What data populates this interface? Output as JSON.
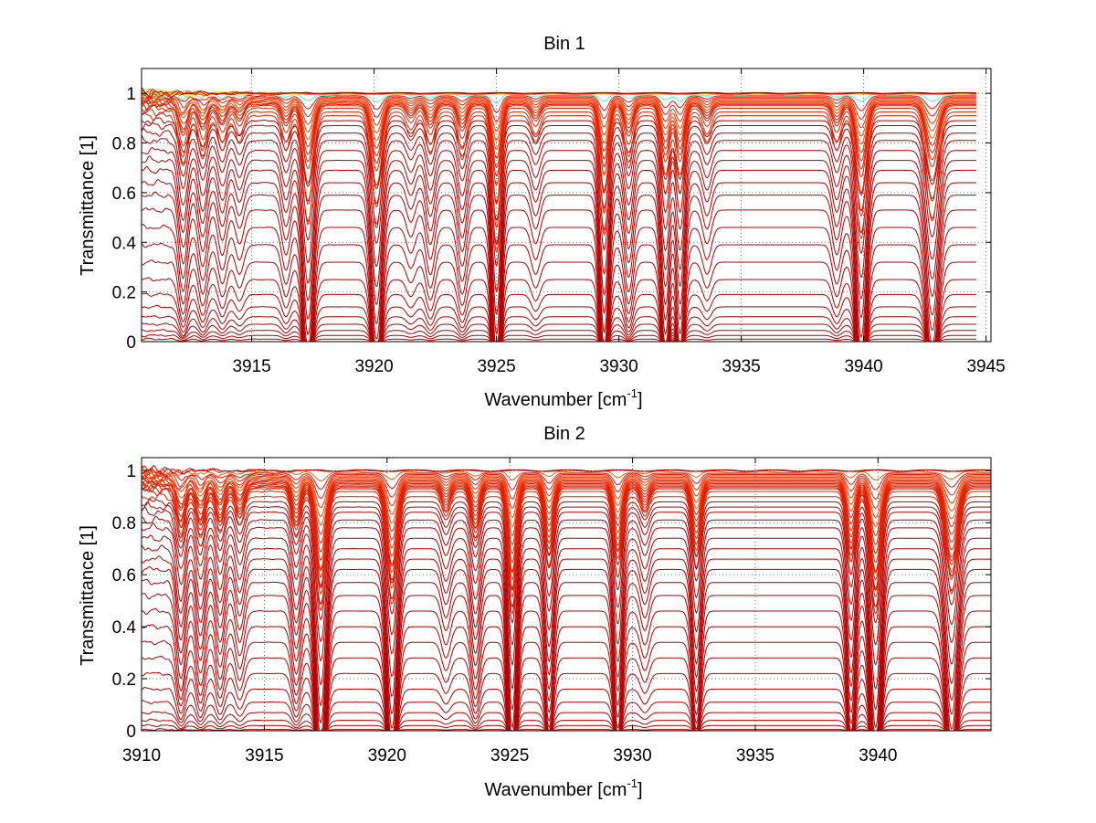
{
  "chart_data": [
    {
      "type": "line",
      "title": "Bin 1",
      "xlabel": "Wavenumber [cm",
      "xlabel_sup": "-1",
      "xlabel_close": "]",
      "ylabel": "Transmittance [1]",
      "xlim": [
        3910.5,
        3945.2
      ],
      "ylim": [
        0,
        1.1
      ],
      "x_data_range": [
        3910.5,
        3944.6
      ],
      "xticks": [
        3915,
        3920,
        3925,
        3930,
        3935,
        3940,
        3945
      ],
      "xtick_labels": [
        "3915",
        "3920",
        "3925",
        "3930",
        "3935",
        "3940",
        "3945"
      ],
      "yticks": [
        0,
        0.2,
        0.4,
        0.6,
        0.8,
        1
      ],
      "ytick_labels": [
        "0",
        "0.2",
        "0.4",
        "0.6",
        "0.8",
        "1"
      ],
      "grid": true,
      "num_series": 40,
      "series_baselines": [
        1.0,
        1.0,
        1.0,
        1.0,
        1.0,
        1.0,
        0.995,
        0.99,
        0.985,
        0.98,
        0.975,
        0.97,
        0.965,
        0.96,
        0.955,
        0.95,
        0.94,
        0.925,
        0.91,
        0.89,
        0.87,
        0.84,
        0.81,
        0.77,
        0.73,
        0.69,
        0.64,
        0.59,
        0.53,
        0.46,
        0.39,
        0.32,
        0.25,
        0.19,
        0.14,
        0.1,
        0.07,
        0.045,
        0.025,
        0.01
      ],
      "absorption_lines": [
        {
          "x": 3912.2,
          "depth": 0.3,
          "width": 0.25
        },
        {
          "x": 3913.0,
          "depth": 0.25,
          "width": 0.25
        },
        {
          "x": 3913.8,
          "depth": 0.2,
          "width": 0.25
        },
        {
          "x": 3914.5,
          "depth": 0.15,
          "width": 0.25
        },
        {
          "x": 3916.4,
          "depth": 0.2,
          "width": 0.25
        },
        {
          "x": 3917.3,
          "depth": 0.62,
          "width": 0.3
        },
        {
          "x": 3920.1,
          "depth": 0.64,
          "width": 0.3
        },
        {
          "x": 3921.5,
          "depth": 0.12,
          "width": 0.25
        },
        {
          "x": 3922.3,
          "depth": 0.22,
          "width": 0.25
        },
        {
          "x": 3923.6,
          "depth": 0.25,
          "width": 0.25
        },
        {
          "x": 3925.0,
          "depth": 0.78,
          "width": 0.25
        },
        {
          "x": 3926.6,
          "depth": 0.15,
          "width": 0.25
        },
        {
          "x": 3929.4,
          "depth": 0.68,
          "width": 0.25
        },
        {
          "x": 3930.4,
          "depth": 0.3,
          "width": 0.25
        },
        {
          "x": 3931.9,
          "depth": 0.55,
          "width": 0.25
        },
        {
          "x": 3932.5,
          "depth": 0.55,
          "width": 0.25
        },
        {
          "x": 3933.6,
          "depth": 0.15,
          "width": 0.25
        },
        {
          "x": 3938.9,
          "depth": 0.2,
          "width": 0.25
        },
        {
          "x": 3939.9,
          "depth": 0.7,
          "width": 0.3
        },
        {
          "x": 3942.8,
          "depth": 0.6,
          "width": 0.35
        }
      ]
    },
    {
      "type": "line",
      "title": "Bin 2",
      "xlabel": "Wavenumber [cm",
      "xlabel_sup": "-1",
      "xlabel_close": "]",
      "ylabel": "Transmittance [1]",
      "xlim": [
        3910,
        3944.6
      ],
      "ylim": [
        0,
        1.05
      ],
      "x_data_range": [
        3910,
        3944.6
      ],
      "xticks": [
        3910,
        3915,
        3920,
        3925,
        3930,
        3935,
        3940
      ],
      "xtick_labels": [
        "3910",
        "3915",
        "3920",
        "3925",
        "3930",
        "3935",
        "3940"
      ],
      "yticks": [
        0,
        0.2,
        0.4,
        0.6,
        0.8,
        1
      ],
      "ytick_labels": [
        "0",
        "0.2",
        "0.4",
        "0.6",
        "0.8",
        "1"
      ],
      "grid": true,
      "num_series": 40,
      "series_baselines": [
        1.0,
        1.0,
        0.995,
        0.99,
        0.985,
        0.98,
        0.975,
        0.97,
        0.965,
        0.96,
        0.955,
        0.95,
        0.945,
        0.94,
        0.935,
        0.93,
        0.92,
        0.9,
        0.88,
        0.86,
        0.84,
        0.81,
        0.78,
        0.74,
        0.7,
        0.66,
        0.62,
        0.57,
        0.52,
        0.46,
        0.4,
        0.34,
        0.28,
        0.22,
        0.16,
        0.11,
        0.07,
        0.04,
        0.02,
        0.005
      ],
      "absorption_lines": [
        {
          "x": 3911.6,
          "depth": 0.3,
          "width": 0.25
        },
        {
          "x": 3912.4,
          "depth": 0.28,
          "width": 0.25
        },
        {
          "x": 3913.2,
          "depth": 0.25,
          "width": 0.25
        },
        {
          "x": 3914.0,
          "depth": 0.2,
          "width": 0.25
        },
        {
          "x": 3916.3,
          "depth": 0.28,
          "width": 0.25
        },
        {
          "x": 3917.3,
          "depth": 0.72,
          "width": 0.3
        },
        {
          "x": 3920.2,
          "depth": 0.68,
          "width": 0.3
        },
        {
          "x": 3922.4,
          "depth": 0.15,
          "width": 0.25
        },
        {
          "x": 3923.6,
          "depth": 0.3,
          "width": 0.25
        },
        {
          "x": 3925.1,
          "depth": 0.74,
          "width": 0.25
        },
        {
          "x": 3926.6,
          "depth": 0.45,
          "width": 0.25
        },
        {
          "x": 3929.4,
          "depth": 0.52,
          "width": 0.25
        },
        {
          "x": 3930.5,
          "depth": 0.15,
          "width": 0.25
        },
        {
          "x": 3932.6,
          "depth": 0.46,
          "width": 0.25
        },
        {
          "x": 3938.9,
          "depth": 0.5,
          "width": 0.25
        },
        {
          "x": 3939.9,
          "depth": 0.74,
          "width": 0.3
        },
        {
          "x": 3943.0,
          "depth": 0.62,
          "width": 0.35
        }
      ]
    }
  ]
}
